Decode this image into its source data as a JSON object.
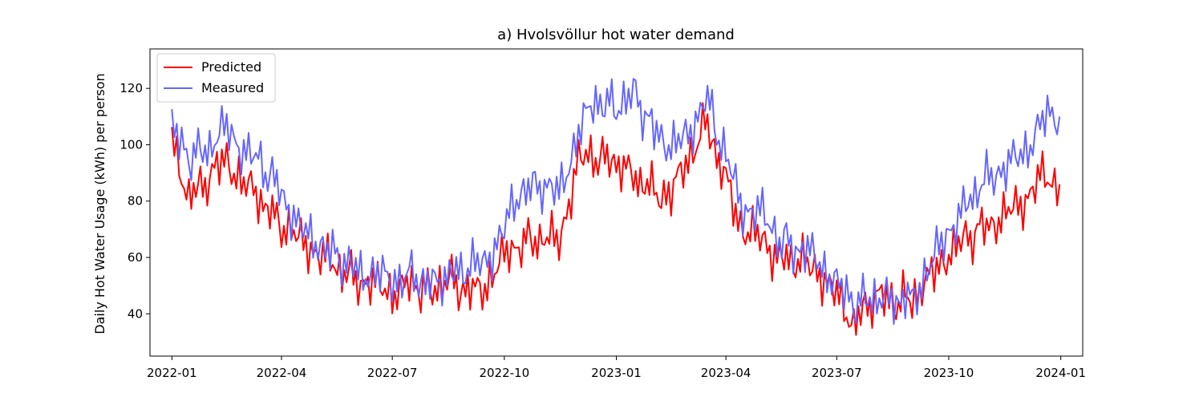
{
  "chart_data": {
    "type": "line",
    "title": "a) Hvolsvöllur hot water demand",
    "xlabel": "",
    "ylabel": "Daily Hot Water Usage (kWh) per person",
    "xlim": [
      "2021-12-14",
      "2024-01-19"
    ],
    "ylim": [
      25,
      134
    ],
    "x_ticks": [
      "2022-01-01",
      "2022-04-01",
      "2022-07-01",
      "2022-10-01",
      "2023-01-01",
      "2023-04-01",
      "2023-07-01",
      "2023-10-01",
      "2024-01-01"
    ],
    "x_tick_labels": [
      "2022-01",
      "2022-04",
      "2022-07",
      "2022-10",
      "2023-01",
      "2023-04",
      "2023-07",
      "2023-10",
      "2024-01"
    ],
    "y_ticks": [
      40,
      60,
      80,
      100,
      120
    ],
    "y_tick_labels": [
      "40",
      "60",
      "80",
      "100",
      "120"
    ],
    "grid": false,
    "legend_position": "top-left",
    "series": [
      {
        "name": "Predicted",
        "color": "#ff0000",
        "x": [
          "2022-01-01",
          "2022-01-15",
          "2022-02-01",
          "2022-02-15",
          "2022-03-01",
          "2022-03-15",
          "2022-04-01",
          "2022-04-15",
          "2022-05-01",
          "2022-05-15",
          "2022-06-01",
          "2022-06-15",
          "2022-07-01",
          "2022-07-15",
          "2022-08-01",
          "2022-08-15",
          "2022-09-01",
          "2022-09-15",
          "2022-10-01",
          "2022-10-15",
          "2022-11-01",
          "2022-11-15",
          "2022-12-01",
          "2022-12-15",
          "2023-01-01",
          "2023-01-15",
          "2023-02-01",
          "2023-02-15",
          "2023-03-01",
          "2023-03-15",
          "2023-04-01",
          "2023-04-15",
          "2023-05-01",
          "2023-05-15",
          "2023-06-01",
          "2023-06-15",
          "2023-07-01",
          "2023-07-15",
          "2023-08-01",
          "2023-08-15",
          "2023-09-01",
          "2023-09-15",
          "2023-10-01",
          "2023-10-15",
          "2023-11-01",
          "2023-11-15",
          "2023-12-01",
          "2023-12-15",
          "2023-12-31"
        ],
        "values": [
          100,
          82,
          88,
          95,
          86,
          80,
          72,
          66,
          62,
          56,
          53,
          50,
          48,
          50,
          48,
          53,
          47,
          50,
          60,
          66,
          66,
          66,
          94,
          96,
          94,
          88,
          84,
          82,
          95,
          108,
          87,
          70,
          66,
          60,
          58,
          56,
          46,
          37,
          46,
          44,
          46,
          52,
          62,
          66,
          72,
          74,
          80,
          88,
          86
        ]
      },
      {
        "name": "Measured",
        "color": "#6666ff",
        "x": [
          "2022-01-01",
          "2022-01-15",
          "2022-02-01",
          "2022-02-15",
          "2022-03-01",
          "2022-03-15",
          "2022-04-01",
          "2022-04-15",
          "2022-05-01",
          "2022-05-15",
          "2022-06-01",
          "2022-06-15",
          "2022-07-01",
          "2022-07-15",
          "2022-08-01",
          "2022-08-15",
          "2022-09-01",
          "2022-09-15",
          "2022-10-01",
          "2022-10-15",
          "2022-11-01",
          "2022-11-15",
          "2022-12-01",
          "2022-12-15",
          "2023-01-01",
          "2023-01-15",
          "2023-02-01",
          "2023-02-15",
          "2023-03-01",
          "2023-03-15",
          "2023-04-01",
          "2023-04-15",
          "2023-05-01",
          "2023-05-15",
          "2023-06-01",
          "2023-06-15",
          "2023-07-01",
          "2023-07-15",
          "2023-08-01",
          "2023-08-15",
          "2023-09-01",
          "2023-09-15",
          "2023-10-01",
          "2023-10-15",
          "2023-11-01",
          "2023-11-15",
          "2023-12-01",
          "2023-12-15",
          "2023-12-31"
        ],
        "values": [
          105,
          96,
          99,
          106,
          98,
          93,
          84,
          70,
          66,
          60,
          56,
          54,
          52,
          54,
          50,
          54,
          56,
          58,
          70,
          84,
          86,
          82,
          105,
          115,
          114,
          118,
          105,
          100,
          102,
          118,
          95,
          78,
          75,
          67,
          62,
          60,
          50,
          44,
          46,
          44,
          46,
          56,
          70,
          78,
          88,
          92,
          96,
          108,
          110
        ]
      }
    ]
  }
}
